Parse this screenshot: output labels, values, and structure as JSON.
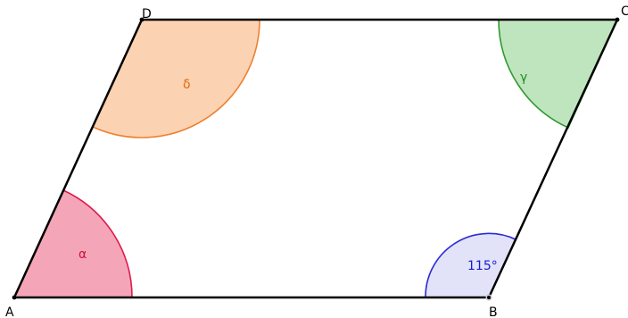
{
  "diagram": {
    "vertices": {
      "A": {
        "label": "A"
      },
      "B": {
        "label": "B"
      },
      "C": {
        "label": "C"
      },
      "D": {
        "label": "D"
      }
    },
    "angles": {
      "alpha": {
        "label": "α",
        "fill": "#f4a6b8",
        "stroke": "#e0194c",
        "text_color": "#d0103c"
      },
      "beta": {
        "label": "115°",
        "fill": "#e2e2f8",
        "stroke": "#2a2ad8",
        "text_color": "#1a1acc"
      },
      "gamma": {
        "label": "γ",
        "fill": "#bfe5bf",
        "stroke": "#2f9a2f",
        "text_color": "#1f8a1f"
      },
      "delta": {
        "label": "δ",
        "fill": "#fcd3b2",
        "stroke": "#ee8030",
        "text_color": "#e06a10"
      }
    },
    "side_color": "#000000"
  }
}
